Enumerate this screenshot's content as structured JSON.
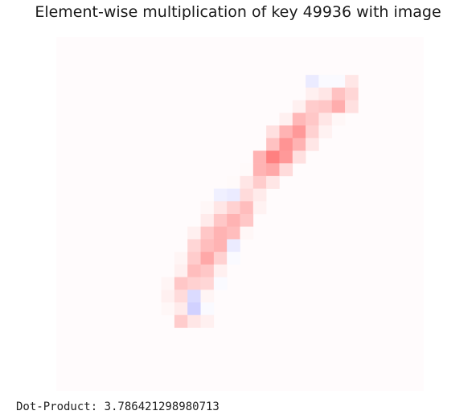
{
  "chart_data": {
    "type": "heatmap",
    "title": "Element-wise multiplication of key 49936 with image",
    "rows": 28,
    "cols": 28,
    "background_color": "#fffbfc",
    "colormap": "bwr",
    "cells": [
      {
        "r": 3,
        "c": 19,
        "v": -0.08
      },
      {
        "r": 3,
        "c": 20,
        "v": -0.02
      },
      {
        "r": 3,
        "c": 21,
        "v": -0.02
      },
      {
        "r": 3,
        "c": 22,
        "v": 0.1
      },
      {
        "r": 4,
        "c": 19,
        "v": 0.06
      },
      {
        "r": 4,
        "c": 20,
        "v": 0.1
      },
      {
        "r": 4,
        "c": 21,
        "v": 0.24
      },
      {
        "r": 4,
        "c": 22,
        "v": 0.16
      },
      {
        "r": 5,
        "c": 18,
        "v": 0.06
      },
      {
        "r": 5,
        "c": 19,
        "v": 0.2
      },
      {
        "r": 5,
        "c": 20,
        "v": 0.22
      },
      {
        "r": 5,
        "c": 21,
        "v": 0.32
      },
      {
        "r": 5,
        "c": 22,
        "v": 0.12
      },
      {
        "r": 6,
        "c": 17,
        "v": 0.06
      },
      {
        "r": 6,
        "c": 18,
        "v": 0.28
      },
      {
        "r": 6,
        "c": 19,
        "v": 0.22
      },
      {
        "r": 6,
        "c": 20,
        "v": 0.1
      },
      {
        "r": 6,
        "c": 21,
        "v": 0.03
      },
      {
        "r": 7,
        "c": 16,
        "v": 0.12
      },
      {
        "r": 7,
        "c": 17,
        "v": 0.3
      },
      {
        "r": 7,
        "c": 18,
        "v": 0.4
      },
      {
        "r": 7,
        "c": 19,
        "v": 0.18
      },
      {
        "r": 7,
        "c": 20,
        "v": 0.05
      },
      {
        "r": 8,
        "c": 16,
        "v": 0.24
      },
      {
        "r": 8,
        "c": 17,
        "v": 0.42
      },
      {
        "r": 8,
        "c": 18,
        "v": 0.3
      },
      {
        "r": 8,
        "c": 19,
        "v": 0.1
      },
      {
        "r": 9,
        "c": 15,
        "v": 0.3
      },
      {
        "r": 9,
        "c": 16,
        "v": 0.5
      },
      {
        "r": 9,
        "c": 17,
        "v": 0.4
      },
      {
        "r": 9,
        "c": 18,
        "v": 0.12
      },
      {
        "r": 10,
        "c": 14,
        "v": 0.02
      },
      {
        "r": 10,
        "c": 15,
        "v": 0.3
      },
      {
        "r": 10,
        "c": 16,
        "v": 0.34
      },
      {
        "r": 10,
        "c": 17,
        "v": 0.14
      },
      {
        "r": 11,
        "c": 13,
        "v": 0.02
      },
      {
        "r": 11,
        "c": 14,
        "v": 0.1
      },
      {
        "r": 11,
        "c": 15,
        "v": 0.2
      },
      {
        "r": 11,
        "c": 16,
        "v": 0.1
      },
      {
        "r": 12,
        "c": 12,
        "v": -0.06
      },
      {
        "r": 12,
        "c": 13,
        "v": -0.08
      },
      {
        "r": 12,
        "c": 14,
        "v": 0.14
      },
      {
        "r": 12,
        "c": 15,
        "v": 0.08
      },
      {
        "r": 13,
        "c": 11,
        "v": 0.03
      },
      {
        "r": 13,
        "c": 12,
        "v": 0.1
      },
      {
        "r": 13,
        "c": 13,
        "v": 0.18
      },
      {
        "r": 13,
        "c": 14,
        "v": 0.26
      },
      {
        "r": 13,
        "c": 15,
        "v": 0.05
      },
      {
        "r": 14,
        "c": 11,
        "v": 0.08
      },
      {
        "r": 14,
        "c": 12,
        "v": 0.22
      },
      {
        "r": 14,
        "c": 13,
        "v": 0.3
      },
      {
        "r": 14,
        "c": 14,
        "v": 0.22
      },
      {
        "r": 15,
        "c": 10,
        "v": 0.06
      },
      {
        "r": 15,
        "c": 11,
        "v": 0.22
      },
      {
        "r": 15,
        "c": 12,
        "v": 0.3
      },
      {
        "r": 15,
        "c": 13,
        "v": 0.26
      },
      {
        "r": 15,
        "c": 14,
        "v": 0.03
      },
      {
        "r": 16,
        "c": 10,
        "v": 0.16
      },
      {
        "r": 16,
        "c": 11,
        "v": 0.26
      },
      {
        "r": 16,
        "c": 12,
        "v": 0.3
      },
      {
        "r": 16,
        "c": 13,
        "v": -0.08
      },
      {
        "r": 17,
        "c": 9,
        "v": 0.04
      },
      {
        "r": 17,
        "c": 10,
        "v": 0.2
      },
      {
        "r": 17,
        "c": 11,
        "v": 0.34
      },
      {
        "r": 17,
        "c": 12,
        "v": 0.18
      },
      {
        "r": 17,
        "c": 13,
        "v": -0.02
      },
      {
        "r": 18,
        "c": 9,
        "v": 0.06
      },
      {
        "r": 18,
        "c": 10,
        "v": 0.26
      },
      {
        "r": 18,
        "c": 11,
        "v": 0.22
      },
      {
        "r": 18,
        "c": 12,
        "v": 0.06
      },
      {
        "r": 19,
        "c": 8,
        "v": 0.04
      },
      {
        "r": 19,
        "c": 9,
        "v": 0.22
      },
      {
        "r": 19,
        "c": 10,
        "v": 0.18
      },
      {
        "r": 19,
        "c": 11,
        "v": 0.16
      },
      {
        "r": 19,
        "c": 12,
        "v": -0.02
      },
      {
        "r": 20,
        "c": 8,
        "v": 0.06
      },
      {
        "r": 20,
        "c": 9,
        "v": 0.14
      },
      {
        "r": 20,
        "c": 10,
        "v": -0.14
      },
      {
        "r": 20,
        "c": 11,
        "v": 0.04
      },
      {
        "r": 21,
        "c": 8,
        "v": 0.03
      },
      {
        "r": 21,
        "c": 9,
        "v": 0.08
      },
      {
        "r": 21,
        "c": 10,
        "v": -0.18
      },
      {
        "r": 21,
        "c": 11,
        "v": -0.02
      },
      {
        "r": 22,
        "c": 9,
        "v": 0.2
      },
      {
        "r": 22,
        "c": 10,
        "v": 0.1
      },
      {
        "r": 22,
        "c": 11,
        "v": 0.06
      }
    ]
  },
  "footer": {
    "dot_product": "Dot-Product: 3.786421298980713"
  }
}
